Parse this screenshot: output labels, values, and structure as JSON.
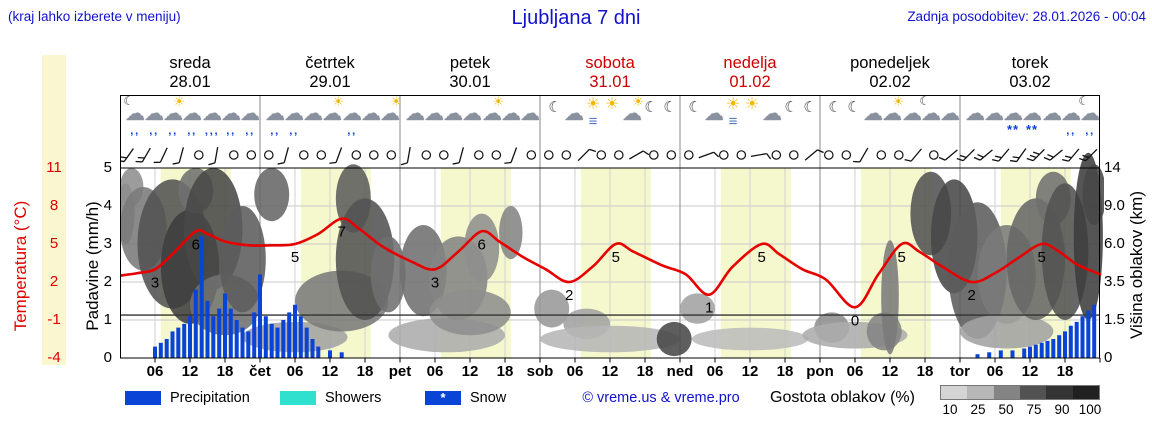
{
  "header": {
    "hint": "(kraj lahko izberete v meniju)",
    "title": "Ljubljana 7 dni",
    "updated": "Zadnja posodobitev: 28.01.2026 - 00:04"
  },
  "days": [
    {
      "name": "sreda",
      "date": "28.01",
      "color": "#000000"
    },
    {
      "name": "četrtek",
      "date": "29.01",
      "color": "#000000"
    },
    {
      "name": "petek",
      "date": "30.01",
      "color": "#000000"
    },
    {
      "name": "sobota",
      "date": "31.01",
      "color": "#cc0000"
    },
    {
      "name": "nedelja",
      "date": "01.02",
      "color": "#cc0000"
    },
    {
      "name": "ponedeljek",
      "date": "02.02",
      "color": "#000000"
    },
    {
      "name": "torek",
      "date": "03.02",
      "color": "#000000"
    }
  ],
  "axes": {
    "temp_title": "Temperatura (°C)",
    "temp_ticks": [
      "11",
      "8",
      "5",
      "2",
      "-1",
      "-4"
    ],
    "precip_title": "Padavine (mm/h)",
    "precip_ticks": [
      "5",
      "4",
      "3",
      "2",
      "1",
      "0"
    ],
    "height_title": "Višina oblakov (km)",
    "height_ticks": [
      "14",
      "9.0",
      "6.0",
      "3.5",
      "1.5",
      "0"
    ],
    "time_ticks": [
      "06",
      "12",
      "18"
    ],
    "day_abbrs": [
      "čet",
      "pet",
      "sob",
      "ned",
      "pon",
      "tor"
    ]
  },
  "legend": {
    "precipitation": "Precipitation",
    "showers": "Showers",
    "snow": "Snow",
    "snow_star": "*",
    "copyright": "© vreme.us & vreme.pro",
    "cloud_density": "Gostota oblakov (%)",
    "density_ticks": [
      "10",
      "25",
      "50",
      "75",
      "90",
      "100"
    ]
  },
  "colors": {
    "link_blue": "#1212cc",
    "warning_red": "#cc0000",
    "temp_line": "#e60000",
    "precip_blue": "#0a44d6",
    "showers_cyan": "#2fe0cf",
    "day_band_yellow": "#f5f8cd",
    "grid_gray": "#d2d2d2"
  },
  "chart_data": {
    "type": "line",
    "title": "Ljubljana 7 dni meteogram",
    "x_axis": {
      "unit": "hour",
      "range": [
        0,
        168
      ],
      "day_count": 7,
      "tick_hours": [
        6,
        12,
        18
      ],
      "daytime_band_hours": [
        7,
        19
      ]
    },
    "temp_axis": {
      "label": "Temperatura (°C)",
      "min": -4,
      "max": 11,
      "ticks": [
        11,
        8,
        5,
        2,
        -1,
        -4
      ]
    },
    "precip_axis": {
      "label": "Padavine (mm/h)",
      "min": 0,
      "max": 5,
      "ticks": [
        5,
        4,
        3,
        2,
        1,
        0
      ]
    },
    "height_axis": {
      "label": "Višina oblakov (km)",
      "ticks": [
        "14",
        "9.0",
        "6.0",
        "3.5",
        "1.5",
        "0"
      ]
    },
    "freezing_line_v": 1.13,
    "temperature_points": [
      [
        0,
        2.5
      ],
      [
        3,
        2.7
      ],
      [
        6,
        3
      ],
      [
        9,
        4.2
      ],
      [
        13,
        6
      ],
      [
        15,
        5.8
      ],
      [
        18,
        5.2
      ],
      [
        22,
        4.9
      ],
      [
        26,
        4.9
      ],
      [
        30,
        5
      ],
      [
        34,
        5.8
      ],
      [
        38,
        7
      ],
      [
        41,
        6.2
      ],
      [
        45,
        4.8
      ],
      [
        50,
        3.6
      ],
      [
        54,
        3
      ],
      [
        58,
        4.4
      ],
      [
        62,
        6
      ],
      [
        65,
        5.2
      ],
      [
        69,
        4.0
      ],
      [
        73,
        3.0
      ],
      [
        77,
        2
      ],
      [
        81,
        3.2
      ],
      [
        85,
        5
      ],
      [
        88,
        4.4
      ],
      [
        93,
        3.3
      ],
      [
        97,
        2.6
      ],
      [
        101,
        1
      ],
      [
        105,
        3.2
      ],
      [
        110,
        5
      ],
      [
        113,
        4.2
      ],
      [
        117,
        3.0
      ],
      [
        121,
        2.2
      ],
      [
        126,
        0
      ],
      [
        130,
        2.6
      ],
      [
        134,
        5
      ],
      [
        137,
        4.4
      ],
      [
        141,
        3.2
      ],
      [
        146,
        2
      ],
      [
        150,
        2.7
      ],
      [
        154,
        3.9
      ],
      [
        158,
        5
      ],
      [
        161,
        4.4
      ],
      [
        164,
        3.4
      ],
      [
        168,
        2.6
      ]
    ],
    "temp_labels": [
      [
        6,
        3
      ],
      [
        13,
        6
      ],
      [
        30,
        5
      ],
      [
        38,
        7
      ],
      [
        54,
        3
      ],
      [
        62,
        6
      ],
      [
        77,
        2
      ],
      [
        85,
        5
      ],
      [
        101,
        1
      ],
      [
        110,
        5
      ],
      [
        126,
        0
      ],
      [
        134,
        5
      ],
      [
        146,
        2
      ],
      [
        158,
        5
      ]
    ],
    "precipitation_mm": [
      [
        6,
        0.3
      ],
      [
        7,
        0.4
      ],
      [
        8,
        0.5
      ],
      [
        9,
        0.7
      ],
      [
        10,
        0.8
      ],
      [
        11,
        0.9
      ],
      [
        12,
        1.1
      ],
      [
        13,
        1.8
      ],
      [
        14,
        3.2
      ],
      [
        15,
        1.5
      ],
      [
        16,
        1.1
      ],
      [
        17,
        1.3
      ],
      [
        18,
        1.7
      ],
      [
        19,
        1.3
      ],
      [
        20,
        1.0
      ],
      [
        21,
        0.8
      ],
      [
        22,
        0.7
      ],
      [
        23,
        1.2
      ],
      [
        24,
        2.2
      ],
      [
        25,
        1.1
      ],
      [
        26,
        0.9
      ],
      [
        27,
        0.8
      ],
      [
        28,
        1.0
      ],
      [
        29,
        1.2
      ],
      [
        30,
        1.4
      ],
      [
        31,
        1.1
      ],
      [
        32,
        0.8
      ],
      [
        33,
        0.5
      ],
      [
        34,
        0.3
      ],
      [
        36,
        0.2
      ],
      [
        38,
        0.15
      ],
      [
        147,
        0.1
      ],
      [
        149,
        0.15
      ],
      [
        151,
        0.2
      ],
      [
        153,
        0.2
      ],
      [
        155,
        0.25
      ],
      [
        156,
        0.3
      ],
      [
        157,
        0.35
      ],
      [
        158,
        0.4
      ],
      [
        159,
        0.45
      ],
      [
        160,
        0.5
      ],
      [
        161,
        0.6
      ],
      [
        162,
        0.7
      ],
      [
        163,
        0.85
      ],
      [
        164,
        0.95
      ],
      [
        165,
        1.1
      ],
      [
        166,
        1.25
      ],
      [
        167,
        1.4
      ]
    ],
    "cloud_blobs": [
      [
        1,
        3.8,
        1.5,
        0.8,
        50
      ],
      [
        2,
        4.5,
        2,
        0.5,
        45
      ],
      [
        4,
        3.4,
        4,
        1.1,
        55
      ],
      [
        9,
        3.0,
        6,
        1.7,
        75
      ],
      [
        12,
        2.4,
        5,
        1.5,
        85
      ],
      [
        13,
        4.4,
        3,
        0.6,
        60
      ],
      [
        16,
        3.4,
        5,
        1.6,
        80
      ],
      [
        18,
        1.4,
        6,
        0.8,
        60
      ],
      [
        21,
        2.6,
        4,
        1.4,
        70
      ],
      [
        26,
        4.3,
        3,
        0.7,
        65
      ],
      [
        30,
        0.55,
        9,
        0.4,
        35
      ],
      [
        38,
        1.5,
        8,
        0.8,
        55
      ],
      [
        40,
        4.2,
        3,
        0.9,
        70
      ],
      [
        42,
        2.6,
        5,
        1.6,
        75
      ],
      [
        46,
        2.2,
        3,
        1.0,
        60
      ],
      [
        52,
        2.3,
        4,
        1.2,
        60
      ],
      [
        56,
        0.6,
        10,
        0.45,
        30
      ],
      [
        58,
        2.1,
        5,
        1.1,
        50
      ],
      [
        60,
        1.2,
        7,
        0.6,
        45
      ],
      [
        62,
        2.9,
        3,
        0.9,
        45
      ],
      [
        67,
        3.3,
        2,
        0.7,
        50
      ],
      [
        74,
        1.3,
        3,
        0.5,
        40
      ],
      [
        80,
        0.9,
        4,
        0.4,
        35
      ],
      [
        84,
        0.5,
        12,
        0.35,
        25
      ],
      [
        95,
        0.5,
        3,
        0.45,
        80
      ],
      [
        99,
        1.3,
        3,
        0.4,
        35
      ],
      [
        108,
        0.5,
        10,
        0.3,
        22
      ],
      [
        122,
        0.8,
        3,
        0.4,
        45
      ],
      [
        126,
        0.6,
        9,
        0.35,
        30
      ],
      [
        131,
        0.7,
        3,
        0.5,
        50
      ],
      [
        132,
        1.6,
        1.5,
        1.5,
        55
      ],
      [
        139,
        3.8,
        3.5,
        1.1,
        75
      ],
      [
        143,
        3.2,
        4,
        1.5,
        80
      ],
      [
        147,
        2.3,
        5,
        1.8,
        70
      ],
      [
        152,
        2.2,
        5,
        1.3,
        55
      ],
      [
        152,
        0.7,
        8,
        0.45,
        35
      ],
      [
        157,
        2.6,
        5,
        1.6,
        65
      ],
      [
        160,
        4.2,
        3,
        0.7,
        60
      ],
      [
        162,
        2.8,
        4,
        1.8,
        75
      ],
      [
        166,
        3.2,
        2.5,
        2.2,
        85
      ],
      [
        167,
        4.3,
        2,
        0.8,
        80
      ]
    ],
    "wind_barbs": [
      "215:2",
      "210:2",
      "205:1",
      "195:1",
      "c",
      "190:1",
      "c",
      "c",
      "c",
      "195:1",
      "c",
      "c",
      "200:1",
      "c",
      "c",
      "c",
      "190:1",
      "c",
      "c",
      "195:1",
      "c",
      "c",
      "200:1",
      "c",
      "c",
      "c",
      "45:1",
      "c",
      "c",
      "60:1",
      "c",
      "c",
      "c",
      "70:1",
      "c",
      "c",
      "80:1",
      "c",
      "c",
      "50:1",
      "c",
      "c",
      "210:1",
      "c",
      "c",
      "220:1",
      "c",
      "230:1",
      "225:2",
      "230:2",
      "220:2",
      "215:2",
      "225:3",
      "230:2",
      "220:2",
      "225:2"
    ],
    "weather_icons": [
      "moon-cloud-rain",
      "rain",
      "sun-cloud-rain",
      "rain",
      "heavy-rain",
      "rain",
      "rain",
      "rain",
      "rain",
      "cloud",
      "sun-cloud",
      "rain",
      "cloud",
      "sun-cloud",
      "cloud",
      "cloud",
      "cloud",
      "cloud",
      "sun-cloud",
      "cloud",
      "cloud",
      "moon",
      "cloud",
      "sun-fog",
      "sun",
      "sun-cloud",
      "moon",
      "moon",
      "moon",
      "cloud",
      "sun-fog",
      "sun",
      "cloud",
      "moon",
      "moon",
      "moon",
      "moon",
      "cloud",
      "sun-cloud",
      "cloud",
      "moon-cloud",
      "cloud",
      "cloud",
      "cloud",
      "snow",
      "snow",
      "cloud",
      "rain",
      "moon-cloud-rain"
    ]
  }
}
